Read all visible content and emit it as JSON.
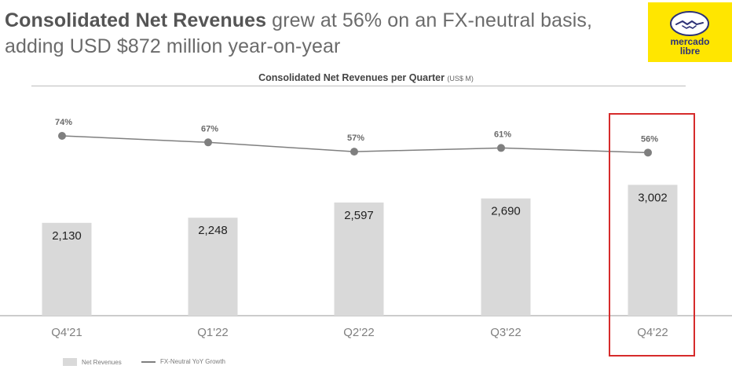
{
  "header": {
    "headline_bold": "Consolidated Net Revenues",
    "headline_rest": " grew at 56% on an FX-neutral basis, adding USD $872 million year-on-year"
  },
  "logo": {
    "line1": "mercado",
    "line2": "libre"
  },
  "colors": {
    "bar": "#d9d9d9",
    "line": "#7f7f7f",
    "highlight": "#d62b2b",
    "brand_yellow": "#ffe600",
    "brand_blue": "#2d3277"
  },
  "chart_data": {
    "type": "bar",
    "title": "Consolidated Net Revenues per Quarter",
    "title_unit": "(US$ M)",
    "categories": [
      "Q4'21",
      "Q1'22",
      "Q2'22",
      "Q3'22",
      "Q4'22"
    ],
    "series": [
      {
        "name": "Net Revenues",
        "kind": "bar",
        "values": [
          2130,
          2248,
          2597,
          2690,
          3002
        ],
        "labels": [
          "2,130",
          "2,248",
          "2,597",
          "2,690",
          "3,002"
        ]
      },
      {
        "name": "FX-Neutral YoY Growth",
        "kind": "line",
        "values": [
          74,
          67,
          57,
          61,
          56
        ],
        "labels": [
          "74%",
          "67%",
          "57%",
          "61%",
          "56%"
        ]
      }
    ],
    "highlighted_category": "Q4'22",
    "legend": [
      "Net Revenues",
      "FX-Neutral YoY Growth"
    ],
    "legend_position": "bottom-left"
  }
}
